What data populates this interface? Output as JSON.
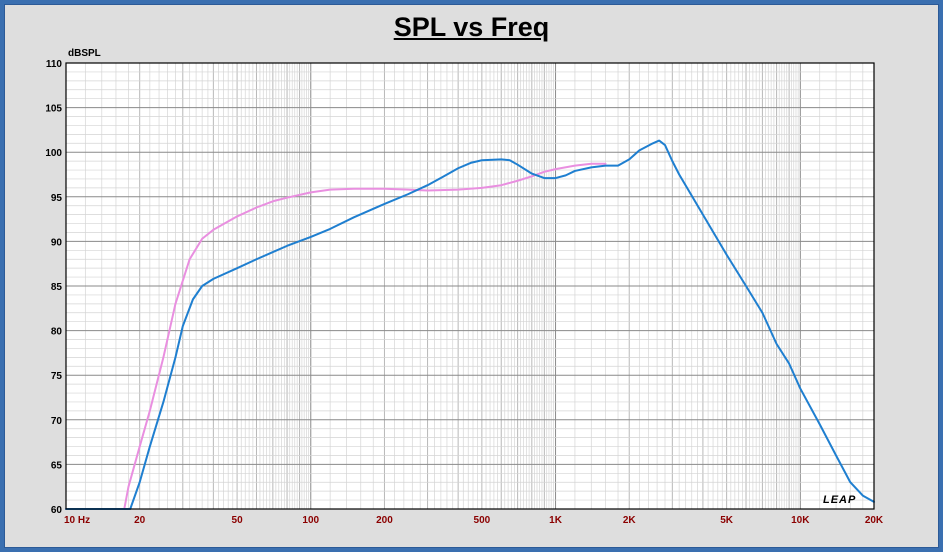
{
  "chart_data": {
    "type": "line",
    "title": "SPL vs Freq",
    "ylabel": "dBSPL",
    "xlabel": "",
    "x_scale": "log",
    "xlim": [
      10,
      20000
    ],
    "ylim": [
      60,
      110
    ],
    "grid": true,
    "x_tick_labels": [
      {
        "value": 10,
        "label": "10  Hz"
      },
      {
        "value": 20,
        "label": "20"
      },
      {
        "value": 50,
        "label": "50"
      },
      {
        "value": 100,
        "label": "100"
      },
      {
        "value": 200,
        "label": "200"
      },
      {
        "value": 500,
        "label": "500"
      },
      {
        "value": 1000,
        "label": "1K"
      },
      {
        "value": 2000,
        "label": "2K"
      },
      {
        "value": 5000,
        "label": "5K"
      },
      {
        "value": 10000,
        "label": "10K"
      },
      {
        "value": 20000,
        "label": "20K"
      }
    ],
    "y_ticks": [
      60,
      65,
      70,
      75,
      80,
      85,
      90,
      95,
      100,
      105,
      110
    ],
    "series": [
      {
        "color": "#e98fe0",
        "points": [
          [
            10,
            60
          ],
          [
            17.3,
            60
          ],
          [
            18,
            62.5
          ],
          [
            20,
            67
          ],
          [
            22,
            71
          ],
          [
            25,
            77
          ],
          [
            28,
            83
          ],
          [
            32,
            88
          ],
          [
            36,
            90.3
          ],
          [
            40,
            91.3
          ],
          [
            50,
            92.8
          ],
          [
            60,
            93.8
          ],
          [
            70,
            94.5
          ],
          [
            80,
            94.9
          ],
          [
            100,
            95.5
          ],
          [
            120,
            95.8
          ],
          [
            150,
            95.9
          ],
          [
            200,
            95.9
          ],
          [
            250,
            95.8
          ],
          [
            300,
            95.7
          ],
          [
            400,
            95.8
          ],
          [
            500,
            96
          ],
          [
            600,
            96.3
          ],
          [
            700,
            96.8
          ],
          [
            800,
            97.3
          ],
          [
            900,
            97.8
          ],
          [
            1000,
            98.1
          ],
          [
            1200,
            98.5
          ],
          [
            1400,
            98.7
          ],
          [
            1600,
            98.7
          ]
        ]
      },
      {
        "color": "#1f7fd0",
        "points": [
          [
            10,
            60
          ],
          [
            18.3,
            60
          ],
          [
            20,
            63
          ],
          [
            22,
            67
          ],
          [
            25,
            72
          ],
          [
            28,
            77
          ],
          [
            30,
            80.5
          ],
          [
            33,
            83.5
          ],
          [
            36,
            85
          ],
          [
            40,
            85.8
          ],
          [
            50,
            87
          ],
          [
            60,
            88
          ],
          [
            70,
            88.8
          ],
          [
            80,
            89.5
          ],
          [
            100,
            90.5
          ],
          [
            120,
            91.4
          ],
          [
            150,
            92.7
          ],
          [
            200,
            94.2
          ],
          [
            250,
            95.3
          ],
          [
            300,
            96.3
          ],
          [
            350,
            97.3
          ],
          [
            400,
            98.2
          ],
          [
            450,
            98.8
          ],
          [
            500,
            99.1
          ],
          [
            600,
            99.2
          ],
          [
            650,
            99.1
          ],
          [
            700,
            98.6
          ],
          [
            800,
            97.6
          ],
          [
            900,
            97.1
          ],
          [
            1000,
            97.1
          ],
          [
            1100,
            97.4
          ],
          [
            1200,
            97.9
          ],
          [
            1400,
            98.3
          ],
          [
            1600,
            98.5
          ],
          [
            1800,
            98.5
          ],
          [
            2000,
            99.2
          ],
          [
            2200,
            100.2
          ],
          [
            2500,
            101
          ],
          [
            2650,
            101.3
          ],
          [
            2800,
            100.8
          ],
          [
            3000,
            99
          ],
          [
            3200,
            97.5
          ],
          [
            4000,
            93
          ],
          [
            5000,
            88.5
          ],
          [
            6000,
            85
          ],
          [
            7000,
            82
          ],
          [
            8000,
            78.5
          ],
          [
            9000,
            76.3
          ],
          [
            10000,
            73.5
          ],
          [
            12000,
            69.5
          ],
          [
            14000,
            66
          ],
          [
            16000,
            63
          ],
          [
            18000,
            61.5
          ],
          [
            20000,
            60.8
          ]
        ]
      }
    ]
  },
  "watermark": "LEAP"
}
